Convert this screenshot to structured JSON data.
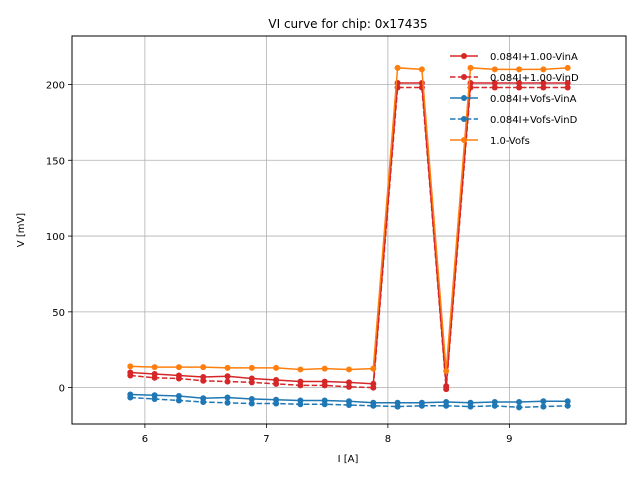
{
  "chart_data": {
    "type": "line",
    "title": "VI curve for chip: 0x17435",
    "xlabel": "I [A]",
    "ylabel": "V [mV]",
    "xlim": [
      5.4,
      9.96
    ],
    "ylim": [
      -24,
      232
    ],
    "xticks": [
      6,
      7,
      8,
      9
    ],
    "yticks": [
      0,
      50,
      100,
      150,
      200
    ],
    "grid": true,
    "legend_position": "top-right",
    "x": [
      5.88,
      6.08,
      6.28,
      6.48,
      6.68,
      6.88,
      7.08,
      7.28,
      7.48,
      7.68,
      7.88,
      8.08,
      8.28,
      8.48,
      8.68,
      8.88,
      9.08,
      9.28,
      9.48
    ],
    "series": [
      {
        "name": "0.084I+1.00-VinA",
        "color": "#d62728",
        "dashed": false,
        "values": [
          10,
          9,
          8,
          7,
          7.5,
          6,
          5,
          4,
          4,
          3.5,
          2.5,
          201,
          201,
          1,
          201,
          201,
          201,
          201,
          201
        ]
      },
      {
        "name": "0.084I+1.00-VinD",
        "color": "#d62728",
        "dashed": true,
        "values": [
          8,
          6.5,
          6,
          4.5,
          4,
          3.5,
          2.5,
          1.5,
          1.5,
          0.5,
          0,
          198,
          198,
          -1,
          198,
          198,
          198,
          198,
          198
        ]
      },
      {
        "name": "0.084I+Vofs-VinA",
        "color": "#1f77b4",
        "dashed": false,
        "values": [
          -4.5,
          -5,
          -5.5,
          -7,
          -6.5,
          -7.5,
          -8,
          -8.5,
          -8.5,
          -9,
          -10,
          -10,
          -10,
          -9.5,
          -10,
          -9.5,
          -9.5,
          -9,
          -9
        ]
      },
      {
        "name": "0.084I+Vofs-VinD",
        "color": "#1f77b4",
        "dashed": true,
        "values": [
          -6.5,
          -7.5,
          -8.5,
          -9.5,
          -10,
          -10.5,
          -10.5,
          -11,
          -11,
          -11.5,
          -12,
          -12.5,
          -12,
          -12,
          -12.5,
          -12,
          -13,
          -12.5,
          -12
        ]
      },
      {
        "name": "1.0-Vofs",
        "color": "#ff7f0e",
        "dashed": false,
        "values": [
          14,
          13.5,
          13.5,
          13.5,
          13,
          13,
          13,
          12,
          12.5,
          12,
          12.5,
          211,
          210,
          11,
          211,
          210,
          210,
          210,
          211
        ]
      }
    ]
  }
}
